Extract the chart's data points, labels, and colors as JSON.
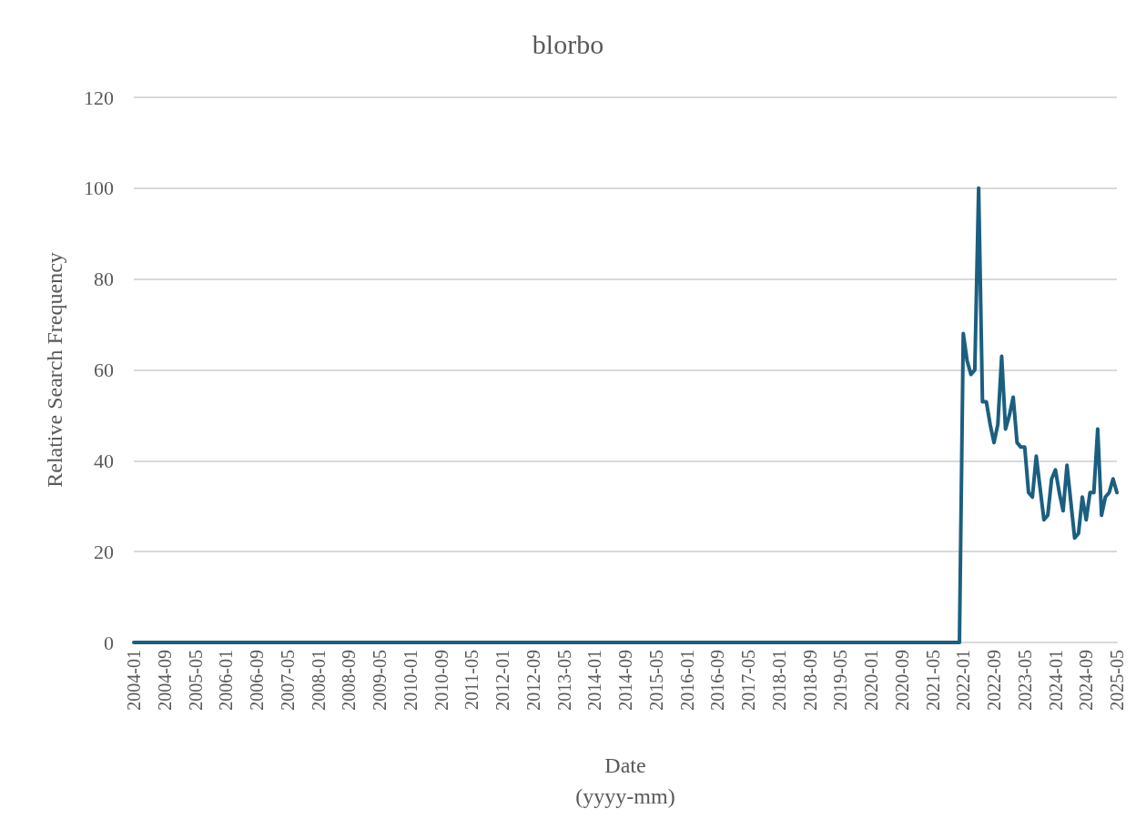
{
  "chart_data": {
    "type": "line",
    "title": "blorbo",
    "xlabel": "Date\n(yyyy-mm)",
    "ylabel": "Relative Search Frequency",
    "categories": [
      "2004-01",
      null,
      null,
      null,
      null,
      null,
      null,
      null,
      "2004-09",
      null,
      null,
      null,
      null,
      null,
      null,
      null,
      "2005-05",
      null,
      null,
      null,
      null,
      null,
      null,
      null,
      "2006-01",
      null,
      null,
      null,
      null,
      null,
      null,
      null,
      "2006-09",
      null,
      null,
      null,
      null,
      null,
      null,
      null,
      "2007-05",
      null,
      null,
      null,
      null,
      null,
      null,
      null,
      "2008-01",
      null,
      null,
      null,
      null,
      null,
      null,
      null,
      "2008-09",
      null,
      null,
      null,
      null,
      null,
      null,
      null,
      "2009-05",
      null,
      null,
      null,
      null,
      null,
      null,
      null,
      "2010-01",
      null,
      null,
      null,
      null,
      null,
      null,
      null,
      "2010-09",
      null,
      null,
      null,
      null,
      null,
      null,
      null,
      "2011-05",
      null,
      null,
      null,
      null,
      null,
      null,
      null,
      "2012-01",
      null,
      null,
      null,
      null,
      null,
      null,
      null,
      "2012-09",
      null,
      null,
      null,
      null,
      null,
      null,
      null,
      "2013-05",
      null,
      null,
      null,
      null,
      null,
      null,
      null,
      "2014-01",
      null,
      null,
      null,
      null,
      null,
      null,
      null,
      "2014-09",
      null,
      null,
      null,
      null,
      null,
      null,
      null,
      "2015-05",
      null,
      null,
      null,
      null,
      null,
      null,
      null,
      "2016-01",
      null,
      null,
      null,
      null,
      null,
      null,
      null,
      "2016-09",
      null,
      null,
      null,
      null,
      null,
      null,
      null,
      "2017-05",
      null,
      null,
      null,
      null,
      null,
      null,
      null,
      "2018-01",
      null,
      null,
      null,
      null,
      null,
      null,
      null,
      "2018-09",
      null,
      null,
      null,
      null,
      null,
      null,
      null,
      "2019-05",
      null,
      null,
      null,
      null,
      null,
      null,
      null,
      "2020-01",
      null,
      null,
      null,
      null,
      null,
      null,
      null,
      "2020-09",
      null,
      null,
      null,
      null,
      null,
      null,
      null,
      "2021-05",
      null,
      null,
      null,
      null,
      null,
      null,
      null,
      "2022-01",
      null,
      null,
      null,
      null,
      null,
      null,
      null,
      "2022-09",
      null,
      null,
      null,
      null,
      null,
      null,
      null,
      "2023-05",
      null,
      null,
      null,
      null,
      null,
      null,
      null,
      "2024-01",
      null,
      null,
      null,
      null,
      null,
      null,
      null,
      "2024-09",
      null,
      null,
      null,
      null,
      null,
      null,
      null,
      "2025-05"
    ],
    "series": [
      {
        "color": "#1b5f80",
        "values": [
          0,
          0,
          0,
          0,
          0,
          0,
          0,
          0,
          0,
          0,
          0,
          0,
          0,
          0,
          0,
          0,
          0,
          0,
          0,
          0,
          0,
          0,
          0,
          0,
          0,
          0,
          0,
          0,
          0,
          0,
          0,
          0,
          0,
          0,
          0,
          0,
          0,
          0,
          0,
          0,
          0,
          0,
          0,
          0,
          0,
          0,
          0,
          0,
          0,
          0,
          0,
          0,
          0,
          0,
          0,
          0,
          0,
          0,
          0,
          0,
          0,
          0,
          0,
          0,
          0,
          0,
          0,
          0,
          0,
          0,
          0,
          0,
          0,
          0,
          0,
          0,
          0,
          0,
          0,
          0,
          0,
          0,
          0,
          0,
          0,
          0,
          0,
          0,
          0,
          0,
          0,
          0,
          0,
          0,
          0,
          0,
          0,
          0,
          0,
          0,
          0,
          0,
          0,
          0,
          0,
          0,
          0,
          0,
          0,
          0,
          0,
          0,
          0,
          0,
          0,
          0,
          0,
          0,
          0,
          0,
          0,
          0,
          0,
          0,
          0,
          0,
          0,
          0,
          0,
          0,
          0,
          0,
          0,
          0,
          0,
          0,
          0,
          0,
          0,
          0,
          0,
          0,
          0,
          0,
          0,
          0,
          0,
          0,
          0,
          0,
          0,
          0,
          0,
          0,
          0,
          0,
          0,
          0,
          0,
          0,
          0,
          0,
          0,
          0,
          0,
          0,
          0,
          0,
          0,
          0,
          0,
          0,
          0,
          0,
          0,
          0,
          0,
          0,
          0,
          0,
          0,
          0,
          0,
          0,
          0,
          0,
          0,
          0,
          0,
          0,
          0,
          0,
          0,
          0,
          0,
          0,
          0,
          0,
          0,
          0,
          0,
          0,
          0,
          0,
          0,
          0,
          0,
          0,
          0,
          0,
          0,
          0,
          0,
          0,
          0,
          0,
          68,
          62,
          59,
          60,
          100,
          53,
          53,
          48,
          44,
          48,
          63,
          47,
          50,
          54,
          44,
          43,
          43,
          33,
          32,
          41,
          34,
          27,
          28,
          36,
          38,
          33,
          29,
          39,
          31,
          23,
          24,
          32,
          27,
          33,
          33,
          47,
          28,
          32,
          33,
          36,
          33
        ]
      }
    ],
    "ylim": [
      0,
      120
    ],
    "yticks": [
      0,
      20,
      40,
      60,
      80,
      100,
      120
    ],
    "grid": "y",
    "marker": "none",
    "line_style": "solid"
  }
}
